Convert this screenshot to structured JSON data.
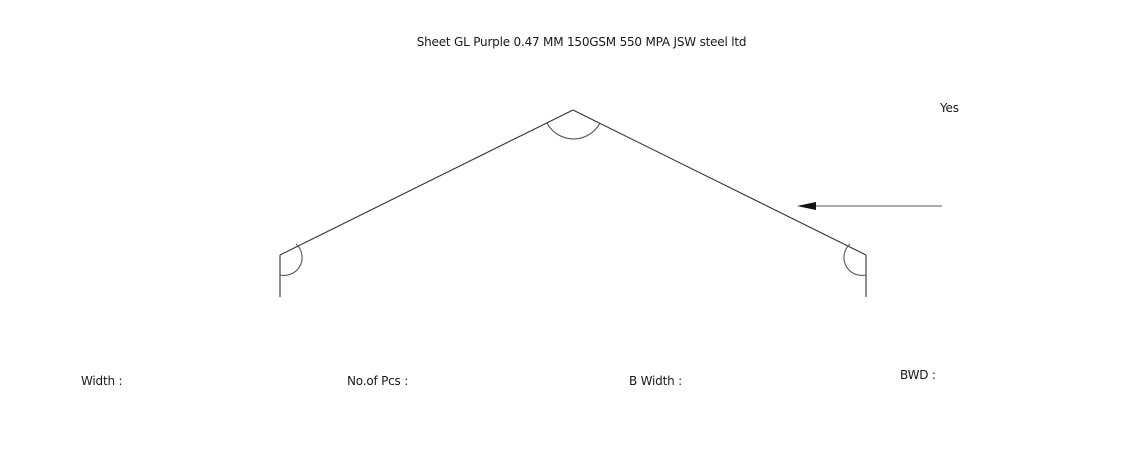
{
  "title": "Sheet GL Purple 0.47 MM 150GSM 550 MPA JSW steel ltd",
  "direction_label": "Yes",
  "fields": {
    "width": "Width :",
    "no_of_pcs": "No.of Pcs :",
    "b_width": "B Width :",
    "bwd": "BWD :"
  },
  "colors": {
    "line": "#333333",
    "text": "#1a1a1a"
  }
}
